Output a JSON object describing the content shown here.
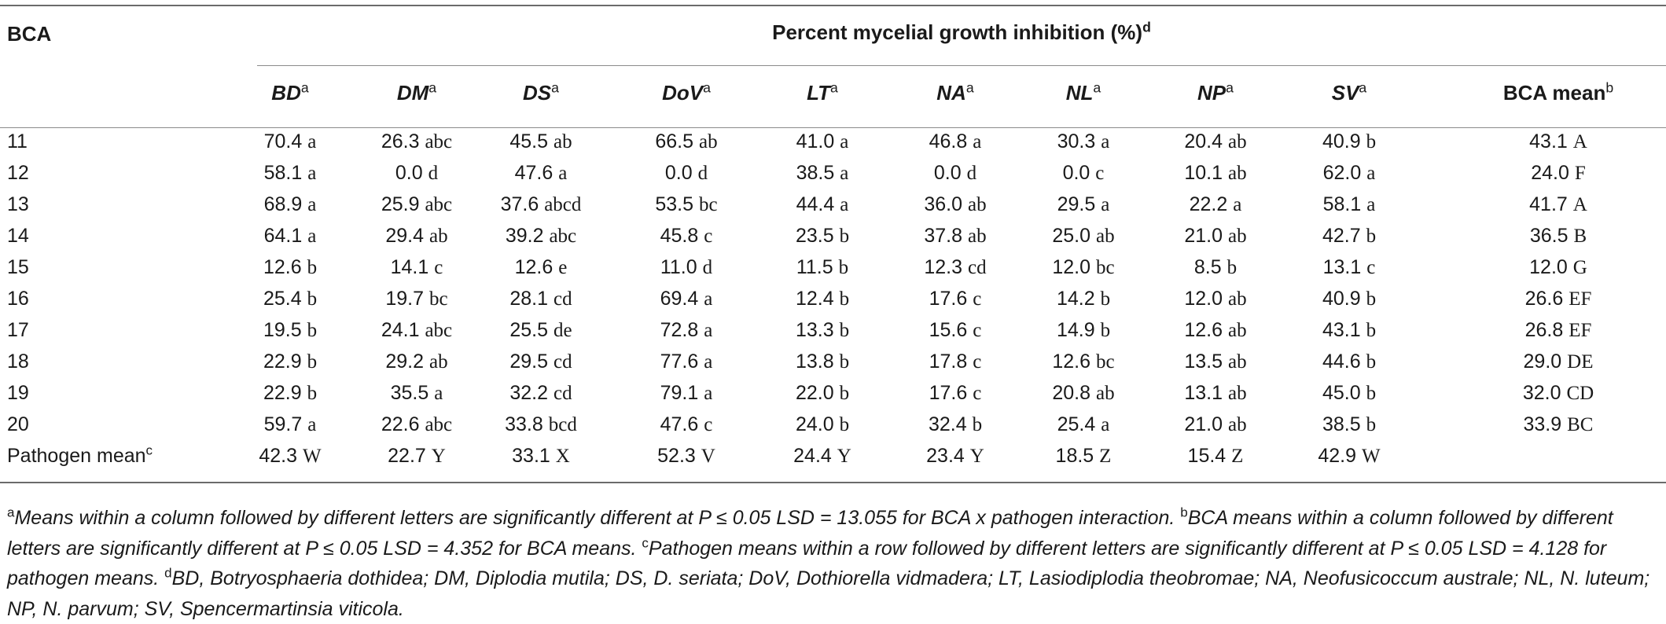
{
  "table": {
    "row_header": "BCA",
    "group_header": "Percent mycelial growth inhibition (%)",
    "group_header_sup": "d",
    "columns": [
      {
        "abbr": "BD",
        "sup": "a",
        "italic": true
      },
      {
        "abbr": "DM",
        "sup": "a",
        "italic": true
      },
      {
        "abbr": "DS",
        "sup": "a",
        "italic": true
      },
      {
        "abbr": "DoV",
        "sup": "a",
        "italic": true
      },
      {
        "abbr": "LT",
        "sup": "a",
        "italic": true
      },
      {
        "abbr": "NA",
        "sup": "a",
        "italic": true
      },
      {
        "abbr": "NL",
        "sup": "a",
        "italic": true
      },
      {
        "abbr": "NP",
        "sup": "a",
        "italic": true
      },
      {
        "abbr": "SV",
        "sup": "a",
        "italic": true
      },
      {
        "abbr": "BCA mean",
        "sup": "b",
        "italic": false
      }
    ],
    "rows": [
      {
        "label": "11",
        "cells": [
          [
            "70.4",
            "a"
          ],
          [
            "26.3",
            "abc"
          ],
          [
            "45.5",
            "ab"
          ],
          [
            "66.5",
            "ab"
          ],
          [
            "41.0",
            "a"
          ],
          [
            "46.8",
            "a"
          ],
          [
            "30.3",
            "a"
          ],
          [
            "20.4",
            "ab"
          ],
          [
            "40.9",
            "b"
          ],
          [
            "43.1",
            "A"
          ]
        ]
      },
      {
        "label": "12",
        "cells": [
          [
            "58.1",
            "a"
          ],
          [
            "0.0",
            "d"
          ],
          [
            "47.6",
            "a"
          ],
          [
            "0.0",
            "d"
          ],
          [
            "38.5",
            "a"
          ],
          [
            "0.0",
            "d"
          ],
          [
            "0.0",
            "c"
          ],
          [
            "10.1",
            "ab"
          ],
          [
            "62.0",
            "a"
          ],
          [
            "24.0",
            "F"
          ]
        ]
      },
      {
        "label": "13",
        "cells": [
          [
            "68.9",
            "a"
          ],
          [
            "25.9",
            "abc"
          ],
          [
            "37.6",
            "abcd"
          ],
          [
            "53.5",
            "bc"
          ],
          [
            "44.4",
            "a"
          ],
          [
            "36.0",
            "ab"
          ],
          [
            "29.5",
            "a"
          ],
          [
            "22.2",
            "a"
          ],
          [
            "58.1",
            "a"
          ],
          [
            "41.7",
            "A"
          ]
        ]
      },
      {
        "label": "14",
        "cells": [
          [
            "64.1",
            "a"
          ],
          [
            "29.4",
            "ab"
          ],
          [
            "39.2",
            "abc"
          ],
          [
            "45.8",
            "c"
          ],
          [
            "23.5",
            "b"
          ],
          [
            "37.8",
            "ab"
          ],
          [
            "25.0",
            "ab"
          ],
          [
            "21.0",
            "ab"
          ],
          [
            "42.7",
            "b"
          ],
          [
            "36.5",
            "B"
          ]
        ]
      },
      {
        "label": "15",
        "cells": [
          [
            "12.6",
            "b"
          ],
          [
            "14.1",
            "c"
          ],
          [
            "12.6",
            "e"
          ],
          [
            "11.0",
            "d"
          ],
          [
            "11.5",
            "b"
          ],
          [
            "12.3",
            "cd"
          ],
          [
            "12.0",
            "bc"
          ],
          [
            "8.5",
            "b"
          ],
          [
            "13.1",
            "c"
          ],
          [
            "12.0",
            "G"
          ]
        ]
      },
      {
        "label": "16",
        "cells": [
          [
            "25.4",
            "b"
          ],
          [
            "19.7",
            "bc"
          ],
          [
            "28.1",
            "cd"
          ],
          [
            "69.4",
            "a"
          ],
          [
            "12.4",
            "b"
          ],
          [
            "17.6",
            "c"
          ],
          [
            "14.2",
            "b"
          ],
          [
            "12.0",
            "ab"
          ],
          [
            "40.9",
            "b"
          ],
          [
            "26.6",
            "EF"
          ]
        ]
      },
      {
        "label": "17",
        "cells": [
          [
            "19.5",
            "b"
          ],
          [
            "24.1",
            "abc"
          ],
          [
            "25.5",
            "de"
          ],
          [
            "72.8",
            "a"
          ],
          [
            "13.3",
            "b"
          ],
          [
            "15.6",
            "c"
          ],
          [
            "14.9",
            "b"
          ],
          [
            "12.6",
            "ab"
          ],
          [
            "43.1",
            "b"
          ],
          [
            "26.8",
            "EF"
          ]
        ]
      },
      {
        "label": "18",
        "cells": [
          [
            "22.9",
            "b"
          ],
          [
            "29.2",
            "ab"
          ],
          [
            "29.5",
            "cd"
          ],
          [
            "77.6",
            "a"
          ],
          [
            "13.8",
            "b"
          ],
          [
            "17.8",
            "c"
          ],
          [
            "12.6",
            "bc"
          ],
          [
            "13.5",
            "ab"
          ],
          [
            "44.6",
            "b"
          ],
          [
            "29.0",
            "DE"
          ]
        ]
      },
      {
        "label": "19",
        "cells": [
          [
            "22.9",
            "b"
          ],
          [
            "35.5",
            "a"
          ],
          [
            "32.2",
            "cd"
          ],
          [
            "79.1",
            "a"
          ],
          [
            "22.0",
            "b"
          ],
          [
            "17.6",
            "c"
          ],
          [
            "20.8",
            "ab"
          ],
          [
            "13.1",
            "ab"
          ],
          [
            "45.0",
            "b"
          ],
          [
            "32.0",
            "CD"
          ]
        ]
      },
      {
        "label": "20",
        "cells": [
          [
            "59.7",
            "a"
          ],
          [
            "22.6",
            "abc"
          ],
          [
            "33.8",
            "bcd"
          ],
          [
            "47.6",
            "c"
          ],
          [
            "24.0",
            "b"
          ],
          [
            "32.4",
            "b"
          ],
          [
            "25.4",
            "a"
          ],
          [
            "21.0",
            "ab"
          ],
          [
            "38.5",
            "b"
          ],
          [
            "33.9",
            "BC"
          ]
        ]
      },
      {
        "label": "Pathogen mean",
        "label_sup": "c",
        "cells": [
          [
            "42.3",
            "W"
          ],
          [
            "22.7",
            "Y"
          ],
          [
            "33.1",
            "X"
          ],
          [
            "52.3",
            "V"
          ],
          [
            "24.4",
            "Y"
          ],
          [
            "23.4",
            "Y"
          ],
          [
            "18.5",
            "Z"
          ],
          [
            "15.4",
            "Z"
          ],
          [
            "42.9",
            "W"
          ]
        ]
      }
    ]
  },
  "footnotes": [
    {
      "sup": "a",
      "text": "Means within a column followed by different letters are significantly different at P ≤ 0.05 LSD = 13.055 for BCA x pathogen interaction. "
    },
    {
      "sup": "b",
      "text": "BCA means within a column followed by different letters are significantly different at P ≤ 0.05 LSD = 4.352 for BCA means. "
    },
    {
      "sup": "c",
      "text": "Pathogen means within a row followed by different letters are significantly different at P ≤ 0.05 LSD = 4.128 for pathogen means. "
    },
    {
      "sup": "d",
      "text": "BD, Botryosphaeria dothidea; DM, Diplodia mutila; DS, D. seriata; DoV, Dothiorella vidmadera; LT, Lasiodiplodia theobromae; NA, Neofusicoccum australe; NL, N. luteum; NP, N. parvum; SV, Spencermartinsia viticola."
    }
  ]
}
